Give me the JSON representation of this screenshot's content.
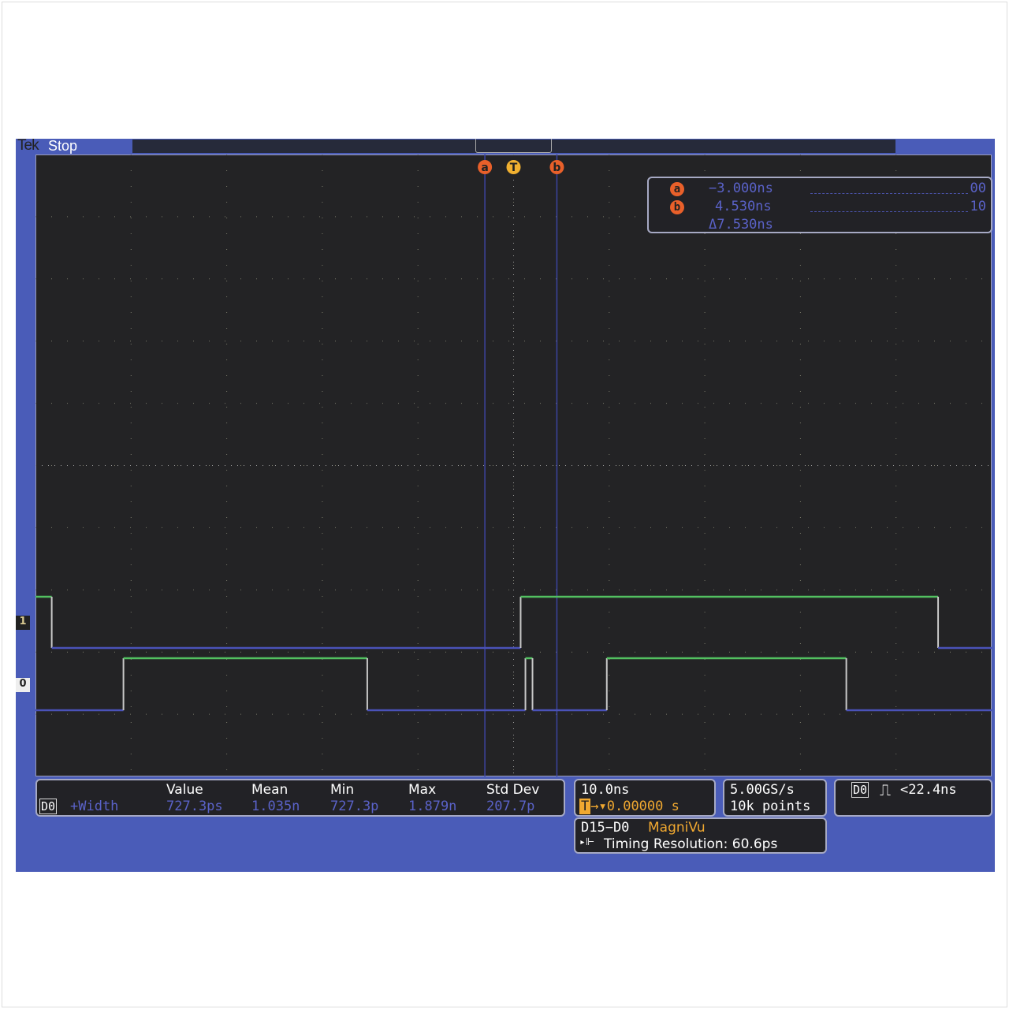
{
  "header": {
    "brand": "Tek",
    "state": "Stop"
  },
  "cursors": {
    "a_label": "a",
    "b_label": "b",
    "trigger_label": "T",
    "a_time": "−3.000ns",
    "b_time": "4.530ns",
    "delta": "Δ7.530ns",
    "a_bits": "00",
    "b_bits": "10",
    "a_ns": -3.0,
    "b_ns": 4.53
  },
  "channels": {
    "d1_label": "1",
    "d0_label": "0"
  },
  "waveforms": {
    "time_per_div_ns": 10,
    "d1": {
      "initial": 1,
      "transitions_ns": [
        -48.3,
        0.74,
        44.4
      ]
    },
    "d0": {
      "initial": 0,
      "transitions_ns": [
        -40.8,
        -15.3,
        1.24,
        1.98,
        9.75,
        34.8
      ]
    },
    "colors": {
      "high": "#52c060",
      "low": "#4a52b8",
      "edge": "#c8c8c8",
      "cursor": "#3c44a0",
      "grid": "#7a7a6a"
    }
  },
  "measurement": {
    "source": "D0",
    "name": "+Width",
    "headers": [
      "Value",
      "Mean",
      "Min",
      "Max",
      "Std Dev"
    ],
    "values": [
      "727.3ps",
      "1.035n",
      "727.3p",
      "1.879n",
      "207.7p"
    ]
  },
  "horizontal": {
    "scale": "10.0ns",
    "trigger_pos": "0.00000 s"
  },
  "acquisition": {
    "rate": "5.00GS/s",
    "points": "10k points"
  },
  "trigger": {
    "source": "D0",
    "condition": "<22.4ns"
  },
  "magnivu": {
    "channels": "D15−D0",
    "mode": "MagniVu",
    "resolution": "Timing Resolution: 60.6ps"
  }
}
